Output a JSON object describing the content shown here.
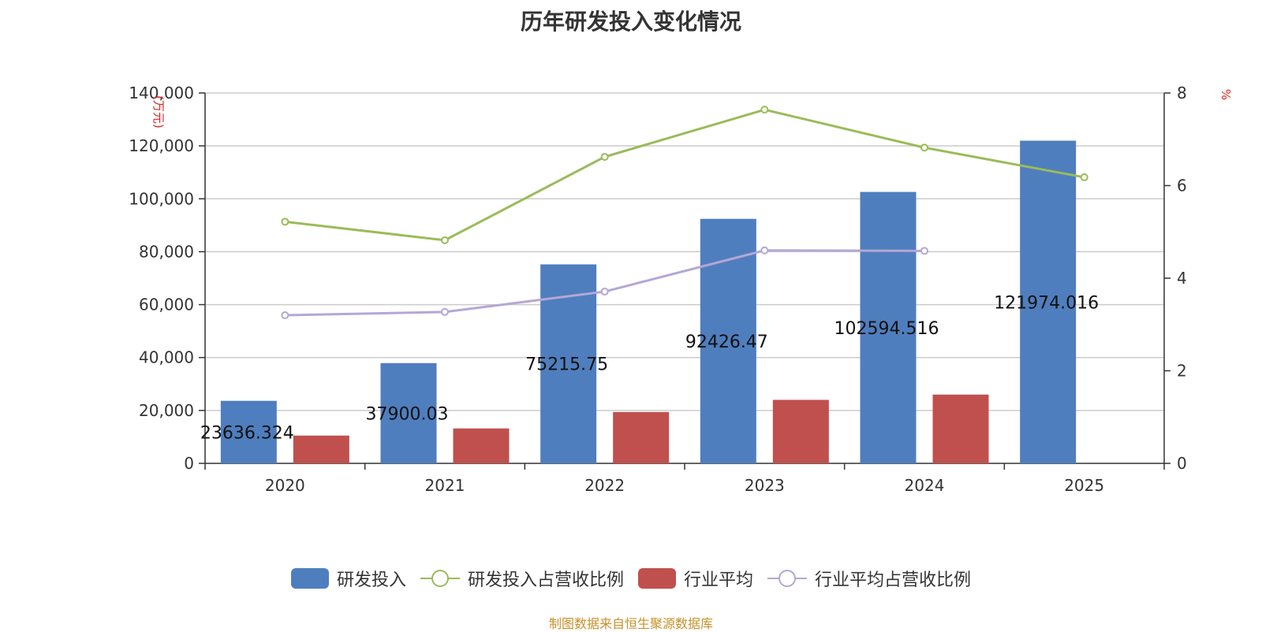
{
  "chart_data": {
    "type": "bar",
    "title": "历年研发投入变化情况",
    "categories": [
      "2020",
      "2021",
      "2022",
      "2023",
      "2024",
      "2025"
    ],
    "y_left": {
      "unit": "(万元)",
      "ylim": [
        0,
        140000
      ],
      "ticks": [
        "0",
        "20,000",
        "40,000",
        "60,000",
        "80,000",
        "100,000",
        "120,000",
        "140,000"
      ]
    },
    "y_right": {
      "unit": "%",
      "ylim": [
        0,
        8
      ],
      "ticks": [
        "0",
        "2",
        "4",
        "6",
        "8"
      ]
    },
    "series": [
      {
        "name": "研发投入",
        "kind": "bar",
        "axis": "left",
        "color": "#4f7ebe",
        "values": [
          23636.324,
          37900.03,
          75215.75,
          92426.47,
          102594.516,
          121974.016
        ],
        "labels": [
          "23636.324",
          "37900.03",
          "75215.75",
          "92426.47",
          "102594.516",
          "121974.016"
        ]
      },
      {
        "name": "研发投入占营收比例",
        "kind": "line",
        "axis": "right",
        "color": "#9bbb59",
        "values": [
          5.22,
          4.82,
          6.62,
          7.64,
          6.82,
          6.18
        ]
      },
      {
        "name": "行业平均",
        "kind": "bar",
        "axis": "left",
        "color": "#c0504d",
        "values": [
          10500,
          13200,
          19400,
          24000,
          26000,
          null
        ]
      },
      {
        "name": "行业平均占营收比例",
        "kind": "line",
        "axis": "right",
        "color": "#b4a7d6",
        "values": [
          3.2,
          3.27,
          3.71,
          4.6,
          4.59,
          null
        ]
      }
    ],
    "grid": true,
    "legend_position": "bottom"
  },
  "footer": {
    "source": "制图数据来自恒生聚源数据库"
  }
}
